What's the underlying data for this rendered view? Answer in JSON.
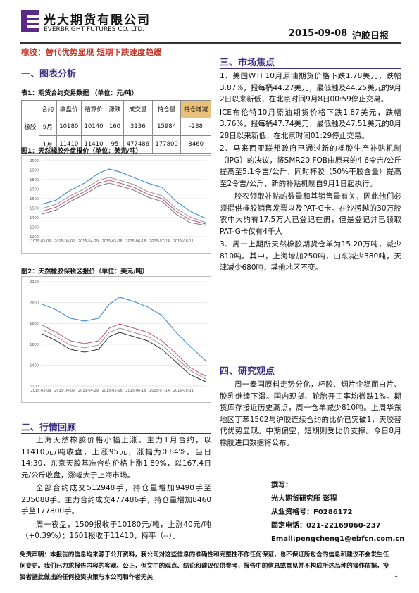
{
  "header": {
    "company": "光大期货有限公司",
    "company_en": "EVERBRIGHT FUTURES CO.,LTD.",
    "date": "2015-09-08",
    "report": "沪胶日报"
  },
  "headline": "橡胶：替代优势显现 短期下跌速度趋缓",
  "section1": {
    "title": "一、图表分析",
    "table_caption": "表1：期货合约交易数据 （单位：元/吨）",
    "table": {
      "header": [
        "合约",
        "收盘价",
        "结算价",
        "涨跌",
        "成交量",
        "持仓量",
        "持仓增减"
      ],
      "group": "橡胶",
      "rows": [
        [
          "9月",
          "10180",
          "10140",
          "160",
          "3136",
          "15984",
          "-238"
        ],
        [
          "1月",
          "11410",
          "11410",
          "95",
          "477486",
          "177800",
          "8460"
        ]
      ]
    },
    "fig1": {
      "caption": "图1：天然橡胶外盘报价（单位：美元/吨）",
      "yticks": [
        "2000",
        "1900",
        "1800",
        "1700",
        "1600",
        "1500",
        "1400",
        "1300",
        "1200"
      ],
      "xticks": [
        "2015-03-09",
        "2015-04-02",
        "2015-04-29",
        "2015-05-26",
        "2015-06-18",
        "2015-07-14",
        "2015-08-11"
      ]
    },
    "fig2": {
      "caption": "图2：天然橡胶保税区报价（单位：美元/吨）",
      "yticks": [
        "2200",
        "2000",
        "1800",
        "1600",
        "1400",
        "1200"
      ],
      "xticks": [
        "2015-03-09",
        "2015-04-02",
        "2015-04-29",
        "2015-05-26",
        "2015-06-18",
        "2015-07-14",
        "2015-08-11"
      ]
    }
  },
  "section2": {
    "title": "二、行情回顾",
    "paragraphs": [
      "上海天然橡胶价格小幅上涨。主力1月合约，以11410元/吨收盘，上涨95元，涨幅为0.84%。当日14:30，东京天胶基准合约价格上涨1.89%，以167.4日元/公斤收盘，涨幅大于上海市场。",
      "全部合约成交512948手，持仓量增加9490手至235088手。主力合约成交477486手，持仓量增加8460手至177800手。",
      "周一夜盘，1509报收于10180元/吨，上涨40元/吨（+0.39%）；1601报收于11410，持平（--）。"
    ]
  },
  "section3": {
    "title": "三、市场焦点",
    "paragraphs": [
      "1、美国WTI 10月原油期货价格下跌1.78美元，跌幅3.87%，报每桶44.27美元，最低触及44.25美元的9月2日以来新低，在北京时间9月8日00:59停止交易。",
      "ICE布伦特10月原油期货价格下跌1.87美元，跌幅3.76%，报每桶47.74美元，最低触及47.51美元的8月28日以来新低，在北京时间01:29停止交易。",
      "2、马来西亚联邦政府已通过新的橡胶生产补贴机制（IPG）的决议，将SMR20 FOB由原来的4.6令吉/公斤提高至5.1令吉/公斤，同时杯胶（50%干胶含量）提高至2令吉/公斤，新的补贴机制自9月1日起执行。",
      "胶农领取补贴的数量和其销售量有关，因此他们必须提供橡胶销售发票以及PAT-G卡。在沙捞越的30万胶农中大约有17.5万人已登记在册，但是登记并已领取PAT-G卡仅有4千人",
      "3、周一上期所天然橡胶期货仓单为15.20万吨，减少810吨。其中，上海增加250吨，山东减少380吨，天津减少680吨，其他地区不变。"
    ]
  },
  "section4": {
    "title": "四、研究观点",
    "paragraph": "周一泰国原料走势分化，杯胶、烟片企稳而白片、胶乳继续下滑。国内现货、轮胎开工率均微跌1%。期货库存接近历史高点，周一仓单减少810吨。上周华东地区丁苯1502与沪胶连续合约的比价已突破1，天胶替代优势显现。中期偏空，短期则受比价支撑。今日8月橡胶进口数据将公布。"
  },
  "author": [
    "撰写：",
    "光大期货研究所 彭程",
    "从业资格号：F0286172",
    "固定电话：021-22169060-237",
    "Email:pengcheng1@ebfcn.com.cn"
  ],
  "footer": {
    "disclaimer": "免责声明：本报告的信息均来源于公开资料，我公司对这些信息的准确性和完整性不作任何保证，也不保证所包含的信息和建议不会发生任何变更。我们已力求报告内容的客观、公正，但文中的观点、结论和建议仅供参考，报告中的信息或意见并不构成所述品种的操作依据，投资者据此做出的任何投资决策与本公司和作者无关",
    "page": "1"
  }
}
